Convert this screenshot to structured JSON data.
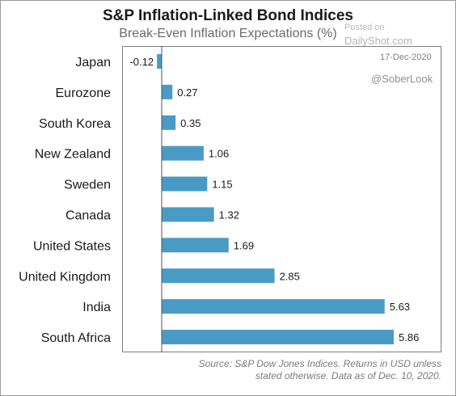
{
  "chart_data": {
    "type": "bar",
    "orientation": "horizontal",
    "title": "S&P Inflation-Linked Bond Indices",
    "subtitle": "Break-Even Inflation Expectations (%)",
    "categories": [
      "Japan",
      "Eurozone",
      "South Korea",
      "New Zealand",
      "Sweden",
      "Canada",
      "United States",
      "United Kingdom",
      "India",
      "South Africa"
    ],
    "values": [
      -0.12,
      0.27,
      0.35,
      1.06,
      1.15,
      1.32,
      1.69,
      2.85,
      5.63,
      5.86
    ],
    "value_labels": [
      "-0.12",
      "0.27",
      "0.35",
      "1.06",
      "1.15",
      "1.32",
      "1.69",
      "2.85",
      "5.63",
      "5.86"
    ],
    "xlim": [
      -0.2,
      6.9
    ],
    "grid": false,
    "legend": "none",
    "bar_color": "#4a9ac6"
  },
  "watermark": {
    "posted": "Posted on",
    "site": "DailyShot.com",
    "date": "17-Dec-2020",
    "handle": "@SoberLook"
  },
  "source": {
    "line1": "Source: S&P Dow Jones Indices. Returns in USD unless",
    "line2": "stated otherwise.  Data as of Dec. 10, 2020."
  }
}
